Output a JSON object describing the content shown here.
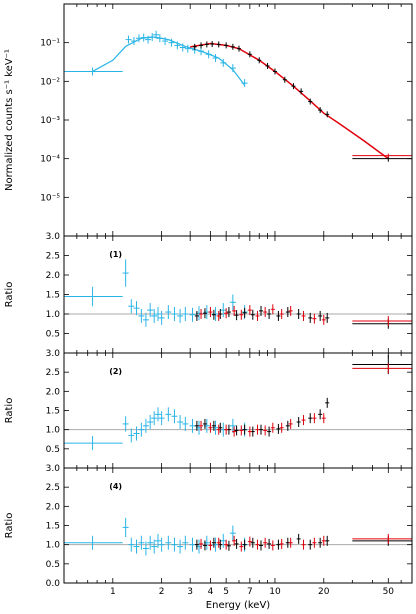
{
  "chart_data": {
    "type": "scatter",
    "x_axis": {
      "label": "Energy (keV)",
      "scale": "log",
      "range": [
        0.5,
        70
      ],
      "ticks": [
        1,
        2,
        3,
        4,
        5,
        7,
        10,
        20,
        50
      ]
    },
    "colors": {
      "cyan": "#2bb5e6",
      "black": "#000000",
      "red": "#e0000b",
      "ref_line": "#aaaaaa"
    },
    "panels": [
      {
        "id": "spectrum",
        "ylabel": "Normalized counts s⁻¹ keV⁻¹",
        "yscale": "log",
        "ylim": [
          1e-06,
          1
        ],
        "yticks": [
          {
            "value": 0.1,
            "label": "10⁻¹"
          },
          {
            "value": 0.01,
            "label": "10⁻²"
          },
          {
            "value": 0.001,
            "label": "10⁻³"
          },
          {
            "value": 0.0001,
            "label": "10⁻⁴"
          },
          {
            "value": 1e-05,
            "label": "10⁻⁵"
          }
        ],
        "cyan_points": [
          {
            "x": 0.75,
            "xlo": 0.5,
            "xhi": 1.15,
            "y": 0.018
          },
          {
            "x": 1.25,
            "y": 0.12
          },
          {
            "x": 1.35,
            "y": 0.11
          },
          {
            "x": 1.45,
            "y": 0.13
          },
          {
            "x": 1.55,
            "y": 0.135
          },
          {
            "x": 1.65,
            "y": 0.12
          },
          {
            "x": 1.75,
            "y": 0.14
          },
          {
            "x": 1.85,
            "y": 0.16
          },
          {
            "x": 1.95,
            "y": 0.13
          },
          {
            "x": 2.1,
            "y": 0.11
          },
          {
            "x": 2.3,
            "y": 0.1
          },
          {
            "x": 2.5,
            "y": 0.085
          },
          {
            "x": 2.7,
            "y": 0.075
          },
          {
            "x": 2.9,
            "y": 0.07
          },
          {
            "x": 3.2,
            "y": 0.065
          },
          {
            "x": 3.5,
            "y": 0.06
          },
          {
            "x": 3.9,
            "y": 0.05
          },
          {
            "x": 4.3,
            "y": 0.04
          },
          {
            "x": 4.8,
            "y": 0.03
          },
          {
            "x": 5.5,
            "y": 0.022
          },
          {
            "x": 6.5,
            "y": 0.009
          }
        ],
        "cyan_model": [
          [
            0.75,
            0.018
          ],
          [
            1.0,
            0.035
          ],
          [
            1.2,
            0.08
          ],
          [
            1.5,
            0.13
          ],
          [
            1.8,
            0.14
          ],
          [
            2.2,
            0.12
          ],
          [
            2.8,
            0.08
          ],
          [
            3.5,
            0.06
          ],
          [
            4.5,
            0.04
          ],
          [
            5.5,
            0.02
          ],
          [
            6.5,
            0.008
          ]
        ],
        "black_points": [
          {
            "x": 3.2,
            "y": 0.078
          },
          {
            "x": 3.5,
            "y": 0.085
          },
          {
            "x": 3.8,
            "y": 0.09
          },
          {
            "x": 4.1,
            "y": 0.092
          },
          {
            "x": 4.5,
            "y": 0.09
          },
          {
            "x": 5.0,
            "y": 0.085
          },
          {
            "x": 5.5,
            "y": 0.078
          },
          {
            "x": 6.0,
            "y": 0.07
          },
          {
            "x": 7.0,
            "y": 0.05
          },
          {
            "x": 8.0,
            "y": 0.035
          },
          {
            "x": 9.0,
            "y": 0.025
          },
          {
            "x": 10.0,
            "y": 0.018
          },
          {
            "x": 11.5,
            "y": 0.011
          },
          {
            "x": 13.0,
            "y": 0.0075
          },
          {
            "x": 14.5,
            "y": 0.0055
          },
          {
            "x": 16.5,
            "y": 0.003
          },
          {
            "x": 19.0,
            "y": 0.0018
          },
          {
            "x": 21.0,
            "y": 0.0014
          },
          {
            "x": 50.0,
            "xlo": 30.0,
            "xhi": 70.0,
            "y": 0.0001
          }
        ],
        "red_model": [
          [
            3.0,
            0.078
          ],
          [
            4.0,
            0.095
          ],
          [
            5.0,
            0.085
          ],
          [
            6.0,
            0.07
          ],
          [
            8.0,
            0.035
          ],
          [
            10.0,
            0.018
          ],
          [
            13.0,
            0.0075
          ],
          [
            16.0,
            0.0035
          ],
          [
            20.0,
            0.0015
          ],
          [
            25.0,
            0.0008
          ],
          [
            35.0,
            0.0003
          ],
          [
            50.0,
            0.0001
          ]
        ],
        "red_points": [
          {
            "x": 50.0,
            "xlo": 30.0,
            "xhi": 70.0,
            "y": 0.00012
          }
        ]
      },
      {
        "id": "ratio1",
        "label": "(1)",
        "ylabel": "Ratio",
        "ylim": [
          0,
          3
        ],
        "yticks": [
          0.5,
          1.0,
          1.5,
          2.0,
          2.5,
          3.0
        ],
        "yticks_text": [
          "0.5",
          "1.0",
          "1.5",
          "2.0",
          "2.5",
          "3.0"
        ],
        "ref": 1.0,
        "cyan_points": [
          {
            "x": 0.75,
            "xlo": 0.5,
            "xhi": 1.15,
            "y": 1.45,
            "err": 0.25
          },
          {
            "x": 1.2,
            "y": 2.05,
            "err": 0.35
          },
          {
            "x": 1.3,
            "y": 1.2
          },
          {
            "x": 1.4,
            "y": 1.15
          },
          {
            "x": 1.5,
            "y": 0.95
          },
          {
            "x": 1.6,
            "y": 0.85
          },
          {
            "x": 1.7,
            "y": 1.1
          },
          {
            "x": 1.8,
            "y": 0.95
          },
          {
            "x": 1.9,
            "y": 1.0
          },
          {
            "x": 2.0,
            "y": 0.9
          },
          {
            "x": 2.2,
            "y": 1.05
          },
          {
            "x": 2.4,
            "y": 1.0
          },
          {
            "x": 2.6,
            "y": 0.95
          },
          {
            "x": 2.8,
            "y": 1.0
          },
          {
            "x": 3.1,
            "y": 0.98
          },
          {
            "x": 3.4,
            "y": 1.02
          },
          {
            "x": 3.8,
            "y": 1.05
          },
          {
            "x": 4.3,
            "y": 1.0
          },
          {
            "x": 4.8,
            "y": 1.1
          },
          {
            "x": 5.5,
            "y": 1.3,
            "err": 0.2
          },
          {
            "x": 6.5,
            "y": 1.05
          }
        ],
        "black_points": [
          {
            "x": 3.3,
            "y": 0.95
          },
          {
            "x": 3.7,
            "y": 1.02
          },
          {
            "x": 4.2,
            "y": 0.98
          },
          {
            "x": 4.6,
            "y": 1.0
          },
          {
            "x": 5.2,
            "y": 1.05
          },
          {
            "x": 5.8,
            "y": 0.97
          },
          {
            "x": 6.5,
            "y": 1.03
          },
          {
            "x": 7.3,
            "y": 0.98
          },
          {
            "x": 8.2,
            "y": 1.08
          },
          {
            "x": 9.2,
            "y": 1.0
          },
          {
            "x": 10.5,
            "y": 0.95
          },
          {
            "x": 12.0,
            "y": 1.05
          },
          {
            "x": 14.0,
            "y": 1.0
          },
          {
            "x": 16.5,
            "y": 0.9
          },
          {
            "x": 19.0,
            "y": 0.95
          },
          {
            "x": 21.0,
            "y": 0.9
          },
          {
            "x": 50.0,
            "xlo": 30.0,
            "xhi": 70.0,
            "y": 0.75
          }
        ],
        "red_points": [
          {
            "x": 3.5,
            "y": 1.0
          },
          {
            "x": 4.0,
            "y": 1.05
          },
          {
            "x": 4.5,
            "y": 0.95
          },
          {
            "x": 5.0,
            "y": 1.02
          },
          {
            "x": 5.6,
            "y": 1.08
          },
          {
            "x": 6.2,
            "y": 0.98
          },
          {
            "x": 7.0,
            "y": 1.1
          },
          {
            "x": 7.8,
            "y": 0.95
          },
          {
            "x": 8.7,
            "y": 1.05
          },
          {
            "x": 9.7,
            "y": 1.12
          },
          {
            "x": 11.0,
            "y": 1.0
          },
          {
            "x": 12.5,
            "y": 1.08
          },
          {
            "x": 15.0,
            "y": 0.95
          },
          {
            "x": 17.5,
            "y": 0.88
          },
          {
            "x": 20.0,
            "y": 0.85
          },
          {
            "x": 50.0,
            "xlo": 30.0,
            "xhi": 70.0,
            "y": 0.82
          }
        ]
      },
      {
        "id": "ratio2",
        "label": "(2)",
        "ylabel": "Ratio",
        "ylim": [
          0,
          3
        ],
        "yticks": [
          0.5,
          1.0,
          1.5,
          2.0,
          2.5,
          3.0
        ],
        "yticks_text": [
          "0.5",
          "1.0",
          "1.5",
          "2.0",
          "2.5",
          "3.0"
        ],
        "ref": 1.0,
        "cyan_points": [
          {
            "x": 0.75,
            "xlo": 0.5,
            "xhi": 1.15,
            "y": 0.65
          },
          {
            "x": 1.2,
            "y": 1.15,
            "err": 0.2
          },
          {
            "x": 1.3,
            "y": 0.85
          },
          {
            "x": 1.4,
            "y": 0.9
          },
          {
            "x": 1.5,
            "y": 1.0
          },
          {
            "x": 1.6,
            "y": 1.1
          },
          {
            "x": 1.7,
            "y": 1.2
          },
          {
            "x": 1.8,
            "y": 1.3
          },
          {
            "x": 1.9,
            "y": 1.4
          },
          {
            "x": 2.0,
            "y": 1.3
          },
          {
            "x": 2.2,
            "y": 1.4
          },
          {
            "x": 2.4,
            "y": 1.35
          },
          {
            "x": 2.6,
            "y": 1.2
          },
          {
            "x": 2.8,
            "y": 1.15
          },
          {
            "x": 3.1,
            "y": 1.1
          },
          {
            "x": 3.4,
            "y": 1.05
          },
          {
            "x": 3.8,
            "y": 1.1
          },
          {
            "x": 4.3,
            "y": 1.05
          },
          {
            "x": 4.8,
            "y": 1.0
          },
          {
            "x": 5.5,
            "y": 1.1
          },
          {
            "x": 6.5,
            "y": 1.0
          }
        ],
        "black_points": [
          {
            "x": 3.3,
            "y": 1.1
          },
          {
            "x": 3.7,
            "y": 1.15
          },
          {
            "x": 4.2,
            "y": 1.1
          },
          {
            "x": 4.6,
            "y": 1.05
          },
          {
            "x": 5.2,
            "y": 1.0
          },
          {
            "x": 5.8,
            "y": 0.98
          },
          {
            "x": 6.5,
            "y": 1.0
          },
          {
            "x": 7.3,
            "y": 0.95
          },
          {
            "x": 8.2,
            "y": 1.0
          },
          {
            "x": 9.2,
            "y": 0.95
          },
          {
            "x": 10.5,
            "y": 1.02
          },
          {
            "x": 12.0,
            "y": 1.1
          },
          {
            "x": 14.0,
            "y": 1.2
          },
          {
            "x": 16.5,
            "y": 1.3
          },
          {
            "x": 19.0,
            "y": 1.4
          },
          {
            "x": 21.0,
            "y": 1.7
          },
          {
            "x": 50.0,
            "xlo": 30.0,
            "xhi": 70.0,
            "y": 2.7,
            "err": 0.25
          }
        ],
        "red_points": [
          {
            "x": 3.5,
            "y": 1.1
          },
          {
            "x": 4.0,
            "y": 1.05
          },
          {
            "x": 4.5,
            "y": 1.0
          },
          {
            "x": 5.0,
            "y": 1.0
          },
          {
            "x": 5.6,
            "y": 0.95
          },
          {
            "x": 6.2,
            "y": 0.98
          },
          {
            "x": 7.0,
            "y": 0.95
          },
          {
            "x": 7.8,
            "y": 1.0
          },
          {
            "x": 8.7,
            "y": 0.98
          },
          {
            "x": 9.7,
            "y": 1.05
          },
          {
            "x": 11.0,
            "y": 1.05
          },
          {
            "x": 12.5,
            "y": 1.15
          },
          {
            "x": 15.0,
            "y": 1.25
          },
          {
            "x": 17.5,
            "y": 1.3
          },
          {
            "x": 20.0,
            "y": 1.3
          },
          {
            "x": 50.0,
            "xlo": 30.0,
            "xhi": 70.0,
            "y": 2.6
          }
        ]
      },
      {
        "id": "ratio4",
        "label": "(4)",
        "ylabel": "Ratio",
        "ylim": [
          0,
          3
        ],
        "yticks": [
          0.0,
          0.5,
          1.0,
          1.5,
          2.0,
          2.5,
          3.0
        ],
        "yticks_text": [
          "0.0",
          "0.5",
          "1.0",
          "1.5",
          "2.0",
          "2.5",
          "3.0"
        ],
        "ref": 1.0,
        "cyan_points": [
          {
            "x": 0.75,
            "xlo": 0.5,
            "xhi": 1.15,
            "y": 1.05
          },
          {
            "x": 1.2,
            "y": 1.45,
            "err": 0.25
          },
          {
            "x": 1.3,
            "y": 1.0
          },
          {
            "x": 1.4,
            "y": 0.95
          },
          {
            "x": 1.5,
            "y": 1.05
          },
          {
            "x": 1.6,
            "y": 0.9
          },
          {
            "x": 1.7,
            "y": 1.05
          },
          {
            "x": 1.8,
            "y": 0.95
          },
          {
            "x": 1.9,
            "y": 1.1
          },
          {
            "x": 2.0,
            "y": 1.0
          },
          {
            "x": 2.2,
            "y": 1.05
          },
          {
            "x": 2.4,
            "y": 1.0
          },
          {
            "x": 2.6,
            "y": 0.95
          },
          {
            "x": 2.8,
            "y": 1.05
          },
          {
            "x": 3.1,
            "y": 1.0
          },
          {
            "x": 3.4,
            "y": 0.95
          },
          {
            "x": 3.8,
            "y": 1.05
          },
          {
            "x": 4.3,
            "y": 1.0
          },
          {
            "x": 4.8,
            "y": 1.1
          },
          {
            "x": 5.5,
            "y": 1.3,
            "err": 0.2
          },
          {
            "x": 6.5,
            "y": 1.0
          }
        ],
        "black_points": [
          {
            "x": 3.3,
            "y": 1.0
          },
          {
            "x": 3.7,
            "y": 0.98
          },
          {
            "x": 4.2,
            "y": 1.05
          },
          {
            "x": 4.6,
            "y": 1.0
          },
          {
            "x": 5.2,
            "y": 0.97
          },
          {
            "x": 5.8,
            "y": 1.02
          },
          {
            "x": 6.5,
            "y": 1.0
          },
          {
            "x": 7.3,
            "y": 1.05
          },
          {
            "x": 8.2,
            "y": 0.98
          },
          {
            "x": 9.2,
            "y": 1.02
          },
          {
            "x": 10.5,
            "y": 1.0
          },
          {
            "x": 12.0,
            "y": 1.05
          },
          {
            "x": 14.0,
            "y": 1.15
          },
          {
            "x": 16.5,
            "y": 1.0
          },
          {
            "x": 19.0,
            "y": 1.05
          },
          {
            "x": 21.0,
            "y": 1.1
          },
          {
            "x": 50.0,
            "xlo": 30.0,
            "xhi": 70.0,
            "y": 1.1
          }
        ],
        "red_points": [
          {
            "x": 3.5,
            "y": 1.02
          },
          {
            "x": 4.0,
            "y": 0.98
          },
          {
            "x": 4.5,
            "y": 1.05
          },
          {
            "x": 5.0,
            "y": 1.0
          },
          {
            "x": 5.6,
            "y": 1.1
          },
          {
            "x": 6.2,
            "y": 0.95
          },
          {
            "x": 7.0,
            "y": 1.08
          },
          {
            "x": 7.8,
            "y": 1.0
          },
          {
            "x": 8.7,
            "y": 1.05
          },
          {
            "x": 9.7,
            "y": 0.98
          },
          {
            "x": 11.0,
            "y": 1.02
          },
          {
            "x": 12.5,
            "y": 1.05
          },
          {
            "x": 15.0,
            "y": 1.0
          },
          {
            "x": 17.5,
            "y": 1.05
          },
          {
            "x": 20.0,
            "y": 1.1
          },
          {
            "x": 50.0,
            "xlo": 30.0,
            "xhi": 70.0,
            "y": 1.15
          }
        ]
      }
    ]
  }
}
